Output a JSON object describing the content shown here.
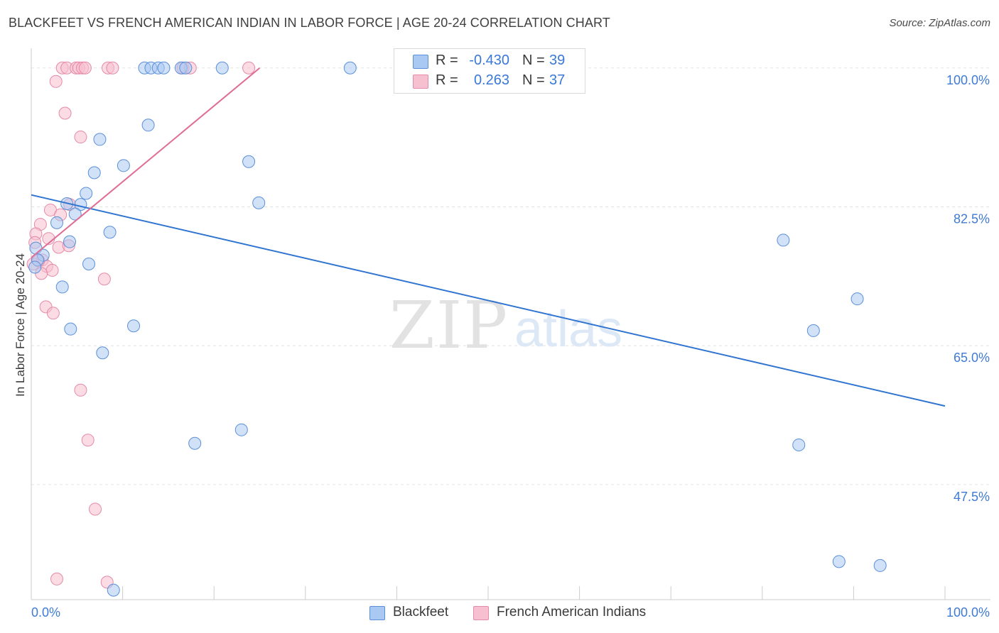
{
  "title": "BLACKFEET VS FRENCH AMERICAN INDIAN IN LABOR FORCE | AGE 20-24 CORRELATION CHART",
  "source": "Source: ZipAtlas.com",
  "watermark": {
    "zip": "ZIP",
    "atlas": "atlas"
  },
  "legend": {
    "rows": [
      {
        "r_label": "R =",
        "r_value": "-0.430",
        "n_label": "N =",
        "n_value": "39",
        "color": "#a9c8f2",
        "border": "#5b8fd8"
      },
      {
        "r_label": "R =",
        "r_value": "0.263",
        "n_label": "N =",
        "n_value": "37",
        "color": "#f7c0d0",
        "border": "#e58aa8"
      }
    ]
  },
  "bottom_legend": [
    {
      "label": "Blackfeet",
      "color": "#a9c8f2",
      "border": "#5b8fd8"
    },
    {
      "label": "French American Indians",
      "color": "#f7c0d0",
      "border": "#e58aa8"
    }
  ],
  "chart_data": {
    "type": "scatter",
    "ylabel": "In Labor Force | Age 20-24",
    "xlabel": "",
    "xlim": [
      0,
      100
    ],
    "ylim": [
      33.0,
      101.5
    ],
    "x_tick_labels": [
      {
        "value": 0,
        "label": "0.0%"
      },
      {
        "value": 100,
        "label": "100.0%"
      }
    ],
    "y_tick_labels": [
      {
        "value": 100,
        "label": "100.0%"
      },
      {
        "value": 82.5,
        "label": "82.5%"
      },
      {
        "value": 65,
        "label": "65.0%"
      },
      {
        "value": 47.5,
        "label": "47.5%"
      }
    ],
    "y_gridlines": [
      100,
      82.5,
      65,
      47.5
    ],
    "grid": true,
    "colors": {
      "blackfeet": "#5b8fd8",
      "blackfeet_fill": "#a9c8f2",
      "blackfeet_line": "#2f74d0",
      "french": "#e58aa8",
      "french_fill": "#f7c0d0",
      "french_line": "#e06b95",
      "tick_label": "#3f7bd4",
      "grid": "#e3e3e3",
      "axis": "#cccccc"
    },
    "series": [
      {
        "name": "Blackfeet",
        "points": [
          [
            12.4,
            100
          ],
          [
            13.1,
            100
          ],
          [
            13.9,
            100
          ],
          [
            14.5,
            100
          ],
          [
            16.4,
            100
          ],
          [
            16.9,
            100
          ],
          [
            20.9,
            100
          ],
          [
            34.9,
            100
          ],
          [
            12.8,
            92.8
          ],
          [
            7.5,
            91.0
          ],
          [
            10.1,
            87.7
          ],
          [
            6.9,
            86.8
          ],
          [
            23.8,
            88.2
          ],
          [
            6.0,
            84.2
          ],
          [
            3.9,
            82.9
          ],
          [
            5.4,
            82.8
          ],
          [
            4.8,
            81.6
          ],
          [
            24.9,
            83.0
          ],
          [
            2.8,
            80.5
          ],
          [
            8.6,
            79.3
          ],
          [
            4.2,
            78.1
          ],
          [
            0.5,
            77.3
          ],
          [
            1.3,
            76.4
          ],
          [
            0.7,
            75.8
          ],
          [
            6.3,
            75.3
          ],
          [
            0.4,
            74.9
          ],
          [
            3.4,
            72.4
          ],
          [
            11.2,
            67.5
          ],
          [
            4.3,
            67.1
          ],
          [
            7.8,
            64.1
          ],
          [
            17.9,
            52.7
          ],
          [
            23.0,
            54.4
          ],
          [
            82.3,
            78.3
          ],
          [
            90.4,
            70.9
          ],
          [
            85.6,
            66.9
          ],
          [
            84.0,
            52.5
          ],
          [
            88.4,
            37.8
          ],
          [
            92.9,
            37.3
          ],
          [
            9.0,
            34.2
          ]
        ],
        "trend": {
          "x1": 0,
          "y1": 84.0,
          "x2": 100,
          "y2": 57.4
        }
      },
      {
        "name": "French American Indians",
        "points": [
          [
            3.4,
            100
          ],
          [
            3.9,
            100
          ],
          [
            4.9,
            100
          ],
          [
            5.2,
            100
          ],
          [
            5.6,
            100
          ],
          [
            5.9,
            100
          ],
          [
            8.4,
            100
          ],
          [
            8.9,
            100
          ],
          [
            16.6,
            100
          ],
          [
            17.4,
            100
          ],
          [
            23.8,
            100
          ],
          [
            2.7,
            98.3
          ],
          [
            3.7,
            94.3
          ],
          [
            5.4,
            91.3
          ],
          [
            2.1,
            82.1
          ],
          [
            4.2,
            82.8
          ],
          [
            3.2,
            81.5
          ],
          [
            1.0,
            80.3
          ],
          [
            0.5,
            79.1
          ],
          [
            1.9,
            78.5
          ],
          [
            0.4,
            78.0
          ],
          [
            3.0,
            77.4
          ],
          [
            4.1,
            77.6
          ],
          [
            1.2,
            75.8
          ],
          [
            1.7,
            75.0
          ],
          [
            2.3,
            74.5
          ],
          [
            1.1,
            74.1
          ],
          [
            8.0,
            73.4
          ],
          [
            1.6,
            69.9
          ],
          [
            2.4,
            69.1
          ],
          [
            5.4,
            59.4
          ],
          [
            6.2,
            53.1
          ],
          [
            7.0,
            44.4
          ],
          [
            2.8,
            35.6
          ],
          [
            8.3,
            35.2
          ],
          [
            0.2,
            75.3
          ],
          [
            0.8,
            75.7
          ]
        ],
        "trend": {
          "x1": 0,
          "y1": 76.1,
          "x2": 25.0,
          "y2": 100
        }
      }
    ]
  }
}
